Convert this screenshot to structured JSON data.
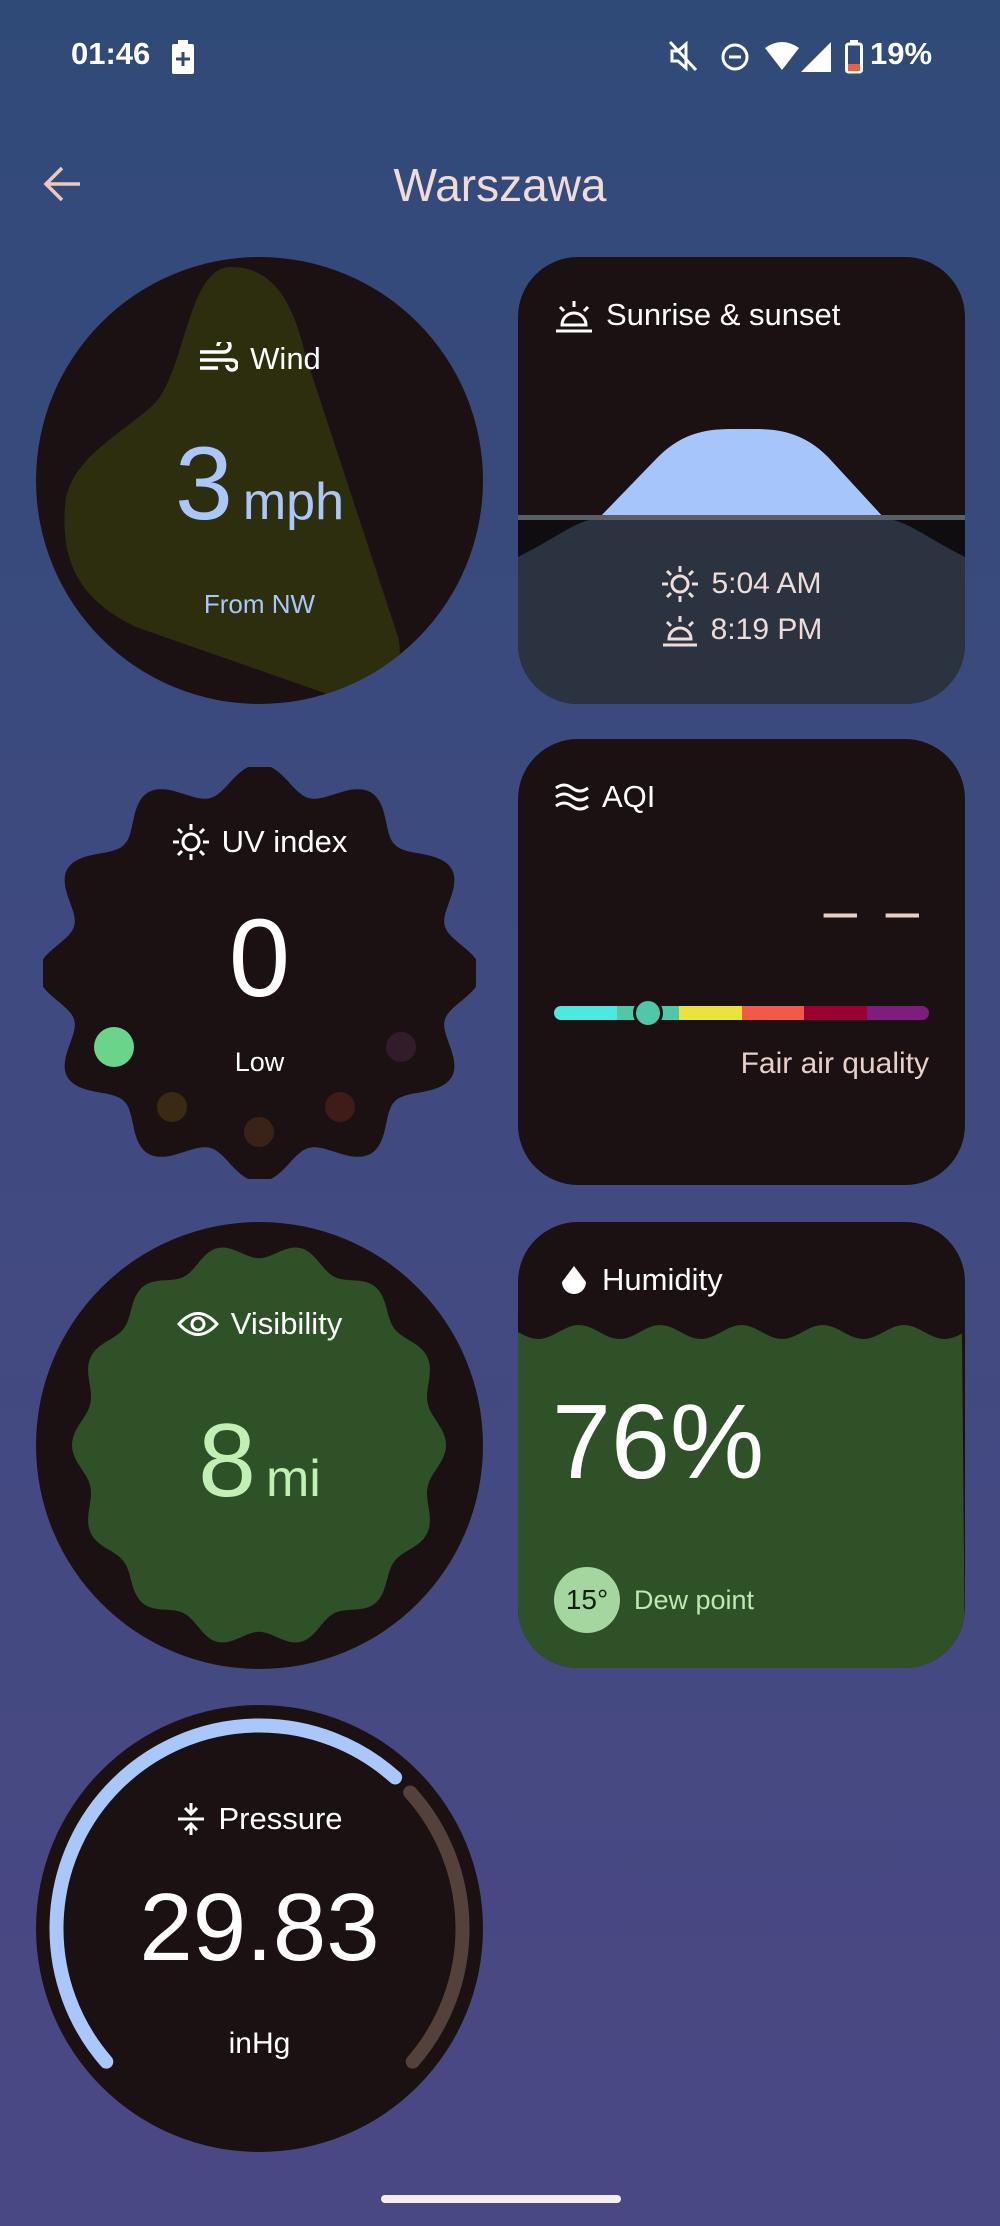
{
  "status_bar": {
    "time": "01:46",
    "battery": "19%",
    "icons": [
      "battery-charging-icon",
      "mute-icon",
      "do-not-disturb-icon",
      "wifi-icon",
      "signal-icon",
      "battery-icon"
    ]
  },
  "header": {
    "title": "Warszawa",
    "back_icon": "arrow-left-icon"
  },
  "wind": {
    "label": "Wind",
    "value": "3",
    "unit": "mph",
    "direction": "From NW",
    "icon": "wind-icon"
  },
  "sun": {
    "label": "Sunrise & sunset",
    "sunrise": "5:04 AM",
    "sunset": "8:19 PM",
    "icon": "sunrise-icon"
  },
  "uv": {
    "label": "UV index",
    "value": "0",
    "level": "Low",
    "icon": "sun-icon"
  },
  "aqi": {
    "label": "AQI",
    "value": "– –",
    "description": "Fair air quality",
    "icon": "air-waves-icon",
    "scale_colors": [
      "#4de8e0",
      "#4fc7a8",
      "#ece23c",
      "#f4574c",
      "#9b0033",
      "#7d1e7e"
    ],
    "indicator_position": 0.25
  },
  "humidity": {
    "label": "Humidity",
    "value": "76%",
    "dew_point_value": "15°",
    "dew_point_label": "Dew point",
    "icon": "water-drop-icon"
  },
  "visibility": {
    "label": "Visibility",
    "value": "8",
    "unit": "mi",
    "icon": "eye-icon"
  },
  "pressure": {
    "label": "Pressure",
    "value": "29.83",
    "unit": "inHg",
    "icon": "pressure-icon",
    "gauge_fraction": 0.66
  }
}
